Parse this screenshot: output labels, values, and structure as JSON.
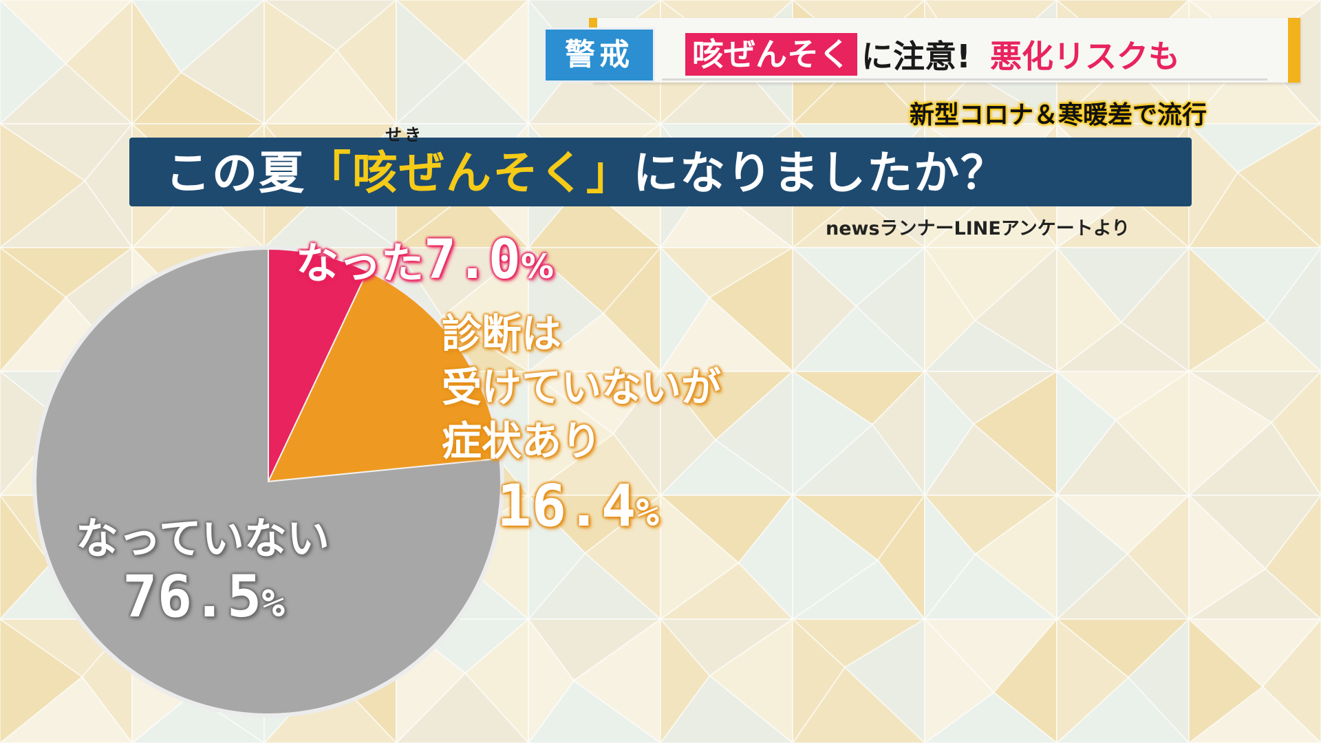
{
  "header": {
    "alert_badge": "警戒",
    "headline_highlight": "咳ぜんそく",
    "headline_mid": "に注意!",
    "headline_tail": "悪化リスクも",
    "subhead": "新型コロナ＆寒暖差で流行"
  },
  "question": {
    "before": "この夏",
    "quote_open": "「",
    "keyword": "咳ぜんそく",
    "quote_close": "」",
    "after": "になりましたか？",
    "furigana": "せき"
  },
  "source": "newsランナーLINEアンケートより",
  "colors": {
    "red": "#e8235d",
    "orange": "#ee9a22",
    "gray": "#a7a7a7",
    "navy": "#1e4a70",
    "yellow": "#f5cb18"
  },
  "chart_data": {
    "type": "pie",
    "slices": [
      {
        "label": "なった",
        "value": 7.0,
        "color": "#e8235d"
      },
      {
        "label": "診断は受けていないが症状あり",
        "value": 16.4,
        "color": "#ee9a22"
      },
      {
        "label": "なっていない",
        "value": 76.5,
        "color": "#a7a7a7"
      }
    ],
    "labels": {
      "red_name": "なった",
      "red_value": "7.0",
      "orange_line1": "診断は",
      "orange_line2": "受けていないが",
      "orange_line3": "症状あり",
      "orange_value": "16.4",
      "gray_name": "なっていない",
      "gray_value": "76.5",
      "unit": "%"
    }
  }
}
